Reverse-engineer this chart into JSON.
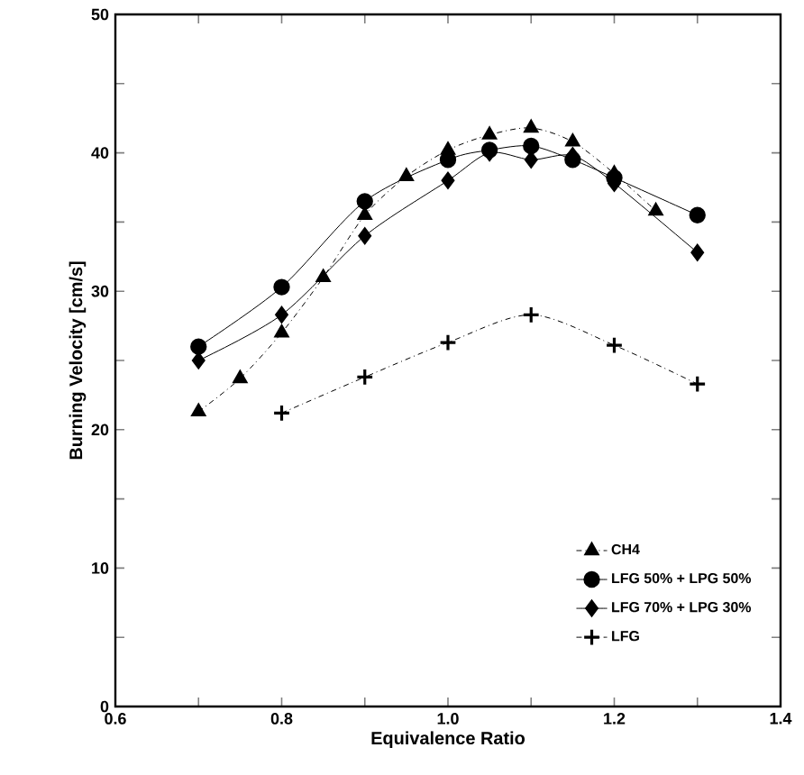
{
  "chart_data": {
    "type": "line",
    "xlabel": "Equivalence Ratio",
    "ylabel": "Burning Velocity [cm/s]",
    "xlim": [
      0.6,
      1.4
    ],
    "ylim": [
      0,
      50
    ],
    "xticks": [
      0.6,
      {
        "value": 0.7,
        "label": null
      },
      0.8,
      {
        "value": 0.9,
        "label": null
      },
      {
        "value": 1.0,
        "label": "1.0"
      },
      {
        "value": 1.1,
        "label": null
      },
      1.2,
      {
        "value": 1.3,
        "label": null
      },
      1.4
    ],
    "yticks": [
      0,
      {
        "value": 5,
        "label": null
      },
      10,
      {
        "value": 15,
        "label": null
      },
      20,
      {
        "value": 25,
        "label": null
      },
      30,
      {
        "value": 35,
        "label": null
      },
      40,
      {
        "value": 45,
        "label": null
      },
      50
    ],
    "legend": "bottom right",
    "grid": false,
    "series": [
      {
        "name": "CH4",
        "color": "#000000",
        "marker": "triangle",
        "line_style": "dashdotted",
        "x": [
          0.7,
          0.75,
          0.8,
          0.85,
          0.9,
          0.95,
          1.0,
          1.05,
          1.1,
          1.15,
          1.2,
          1.25
        ],
        "values": [
          21.3,
          23.7,
          27.0,
          31.0,
          35.5,
          38.3,
          40.2,
          41.3,
          41.8,
          40.8,
          38.5,
          35.8
        ]
      },
      {
        "name": "LFG 50% + LPG 50%",
        "color": "#000000",
        "marker": "circle",
        "line_style": "solid",
        "x": [
          0.7,
          0.8,
          0.9,
          1.0,
          1.05,
          1.1,
          1.15,
          1.2,
          1.3
        ],
        "values": [
          26.0,
          30.3,
          36.5,
          39.5,
          40.2,
          40.5,
          39.5,
          38.2,
          35.5
        ]
      },
      {
        "name": "LFG 70% + LPG 30%",
        "color": "#000000",
        "marker": "diamond",
        "line_style": "solid",
        "x": [
          0.7,
          0.8,
          0.9,
          1.0,
          1.05,
          1.1,
          1.15,
          1.2,
          1.3
        ],
        "values": [
          25.0,
          28.3,
          34.0,
          38.0,
          40.0,
          39.5,
          39.8,
          37.8,
          32.8
        ]
      },
      {
        "name": "LFG",
        "color": "#000000",
        "marker": "cross",
        "line_style": "dashdotted",
        "x": [
          0.8,
          0.9,
          1.0,
          1.1,
          1.2,
          1.3
        ],
        "values": [
          21.2,
          23.8,
          26.3,
          28.3,
          26.1,
          23.3
        ]
      }
    ]
  }
}
